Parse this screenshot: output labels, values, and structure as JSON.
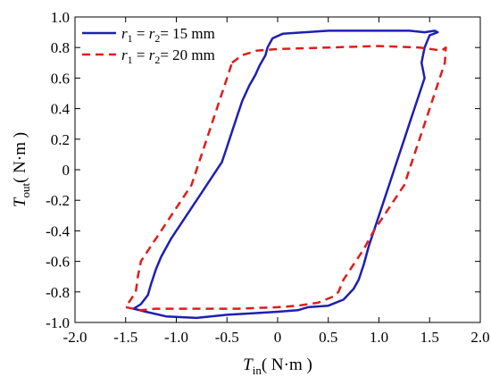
{
  "chart_data": {
    "type": "line",
    "title": "",
    "xlabel": {
      "symbol": "T",
      "sub": "in",
      "unit": "( N·m )"
    },
    "ylabel": {
      "symbol": "T",
      "sub": "out",
      "unit": "( N·m )"
    },
    "xlim": [
      -2.0,
      2.0
    ],
    "ylim": [
      -1.0,
      1.0
    ],
    "xticks": [
      "-2.0",
      "-1.5",
      "-1.0",
      "-0.5",
      "0",
      "0.5",
      "1.0",
      "1.5",
      "2.0"
    ],
    "yticks": [
      "-1.0",
      "-0.8",
      "-0.6",
      "-0.4",
      "-0.2",
      "0",
      "0.2",
      "0.4",
      "0.6",
      "0.8",
      "1.0"
    ],
    "grid": false,
    "legend_position": "top-left",
    "series": [
      {
        "name": "r1 = r2 = 15 mm",
        "legend": {
          "a": "r",
          "a_sub": "1",
          "b": "r",
          "b_sub": "2",
          "rest": "= 15 mm"
        },
        "color": "#1f1fb4",
        "dash": "solid",
        "points": [
          [
            -0.1,
            0.8
          ],
          [
            -0.05,
            0.86
          ],
          [
            0.05,
            0.89
          ],
          [
            0.5,
            0.91
          ],
          [
            1.0,
            0.91
          ],
          [
            1.3,
            0.91
          ],
          [
            1.45,
            0.9
          ],
          [
            1.55,
            0.91
          ],
          [
            1.58,
            0.9
          ],
          [
            1.5,
            0.88
          ],
          [
            1.45,
            0.8
          ],
          [
            1.42,
            0.7
          ],
          [
            1.45,
            0.6
          ],
          [
            1.4,
            0.5
          ],
          [
            1.35,
            0.4
          ],
          [
            1.3,
            0.3
          ],
          [
            1.25,
            0.2
          ],
          [
            1.2,
            0.1
          ],
          [
            1.15,
            0.0
          ],
          [
            1.1,
            -0.1
          ],
          [
            1.05,
            -0.2
          ],
          [
            1.0,
            -0.3
          ],
          [
            0.95,
            -0.4
          ],
          [
            0.9,
            -0.5
          ],
          [
            0.85,
            -0.62
          ],
          [
            0.8,
            -0.72
          ],
          [
            0.75,
            -0.78
          ],
          [
            0.65,
            -0.85
          ],
          [
            0.5,
            -0.89
          ],
          [
            0.3,
            -0.9
          ],
          [
            0.25,
            -0.91
          ],
          [
            0.2,
            -0.92
          ],
          [
            0.0,
            -0.93
          ],
          [
            -0.25,
            -0.94
          ],
          [
            -0.5,
            -0.95
          ],
          [
            -0.8,
            -0.97
          ],
          [
            -1.1,
            -0.96
          ],
          [
            -1.3,
            -0.93
          ],
          [
            -1.42,
            -0.91
          ],
          [
            -1.35,
            -0.88
          ],
          [
            -1.28,
            -0.82
          ],
          [
            -1.25,
            -0.75
          ],
          [
            -1.2,
            -0.65
          ],
          [
            -1.15,
            -0.57
          ],
          [
            -1.05,
            -0.45
          ],
          [
            -0.95,
            -0.35
          ],
          [
            -0.85,
            -0.25
          ],
          [
            -0.75,
            -0.15
          ],
          [
            -0.65,
            -0.05
          ],
          [
            -0.55,
            0.05
          ],
          [
            -0.5,
            0.15
          ],
          [
            -0.45,
            0.25
          ],
          [
            -0.4,
            0.35
          ],
          [
            -0.35,
            0.45
          ],
          [
            -0.28,
            0.55
          ],
          [
            -0.22,
            0.62
          ],
          [
            -0.18,
            0.68
          ],
          [
            -0.12,
            0.75
          ],
          [
            -0.1,
            0.8
          ]
        ]
      },
      {
        "name": "r1 = r2 = 20 mm",
        "legend": {
          "a": "r",
          "a_sub": "1",
          "b": "r",
          "b_sub": "2",
          "rest": "= 20 mm"
        },
        "color": "#e11b1b",
        "dash": "dashed",
        "points": [
          [
            -0.45,
            0.7
          ],
          [
            -0.35,
            0.75
          ],
          [
            -0.2,
            0.78
          ],
          [
            0.0,
            0.79
          ],
          [
            0.5,
            0.8
          ],
          [
            1.0,
            0.81
          ],
          [
            1.4,
            0.8
          ],
          [
            1.62,
            0.78
          ],
          [
            1.66,
            0.8
          ],
          [
            1.65,
            0.7
          ],
          [
            1.6,
            0.6
          ],
          [
            1.55,
            0.5
          ],
          [
            1.5,
            0.4
          ],
          [
            1.45,
            0.3
          ],
          [
            1.4,
            0.2
          ],
          [
            1.35,
            0.1
          ],
          [
            1.3,
            0.0
          ],
          [
            1.25,
            -0.1
          ],
          [
            1.15,
            -0.2
          ],
          [
            1.05,
            -0.3
          ],
          [
            0.95,
            -0.4
          ],
          [
            0.85,
            -0.52
          ],
          [
            0.75,
            -0.62
          ],
          [
            0.65,
            -0.72
          ],
          [
            0.6,
            -0.8
          ],
          [
            0.55,
            -0.83
          ],
          [
            0.4,
            -0.87
          ],
          [
            0.2,
            -0.89
          ],
          [
            0.0,
            -0.9
          ],
          [
            -0.4,
            -0.91
          ],
          [
            -0.8,
            -0.91
          ],
          [
            -1.2,
            -0.91
          ],
          [
            -1.35,
            -0.92
          ],
          [
            -1.5,
            -0.9
          ],
          [
            -1.4,
            -0.8
          ],
          [
            -1.38,
            -0.7
          ],
          [
            -1.35,
            -0.6
          ],
          [
            -1.25,
            -0.5
          ],
          [
            -1.15,
            -0.4
          ],
          [
            -1.05,
            -0.3
          ],
          [
            -0.95,
            -0.2
          ],
          [
            -0.85,
            -0.1
          ],
          [
            -0.8,
            0.0
          ],
          [
            -0.75,
            0.1
          ],
          [
            -0.7,
            0.2
          ],
          [
            -0.65,
            0.3
          ],
          [
            -0.6,
            0.4
          ],
          [
            -0.55,
            0.5
          ],
          [
            -0.5,
            0.6
          ],
          [
            -0.45,
            0.7
          ]
        ]
      }
    ]
  }
}
